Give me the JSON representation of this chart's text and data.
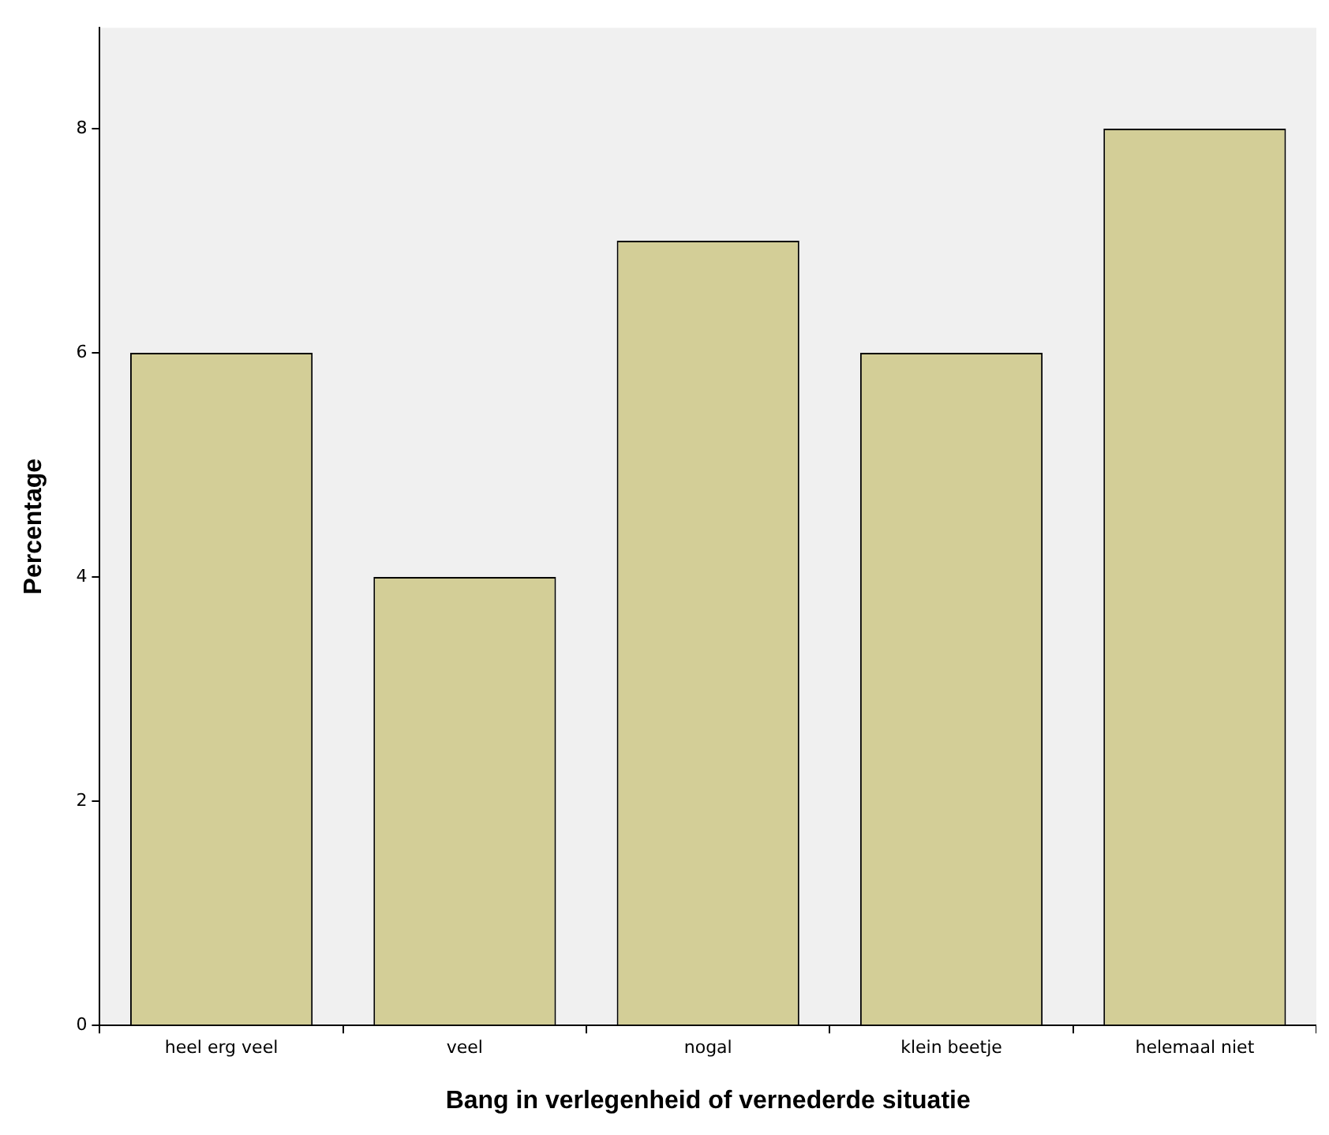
{
  "chart_data": {
    "type": "bar",
    "xlabel": "Bang in verlegenheid of vernederde situatie",
    "ylabel": "Percentage",
    "categories": [
      "heel erg veel",
      "veel",
      "nogal",
      "klein beetje",
      "helemaal niet"
    ],
    "values": [
      6,
      4,
      7,
      6,
      8
    ],
    "color": "#d3ce97",
    "ylim": [
      0,
      8.9
    ],
    "yticks": [
      0,
      2,
      4,
      6,
      8
    ],
    "grid": false,
    "legend": false
  }
}
